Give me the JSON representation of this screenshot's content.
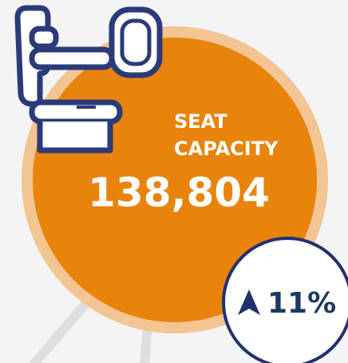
{
  "label": [
    "SEAT",
    "CAPACITY"
  ],
  "value": "138,804",
  "change": "11%"
}
